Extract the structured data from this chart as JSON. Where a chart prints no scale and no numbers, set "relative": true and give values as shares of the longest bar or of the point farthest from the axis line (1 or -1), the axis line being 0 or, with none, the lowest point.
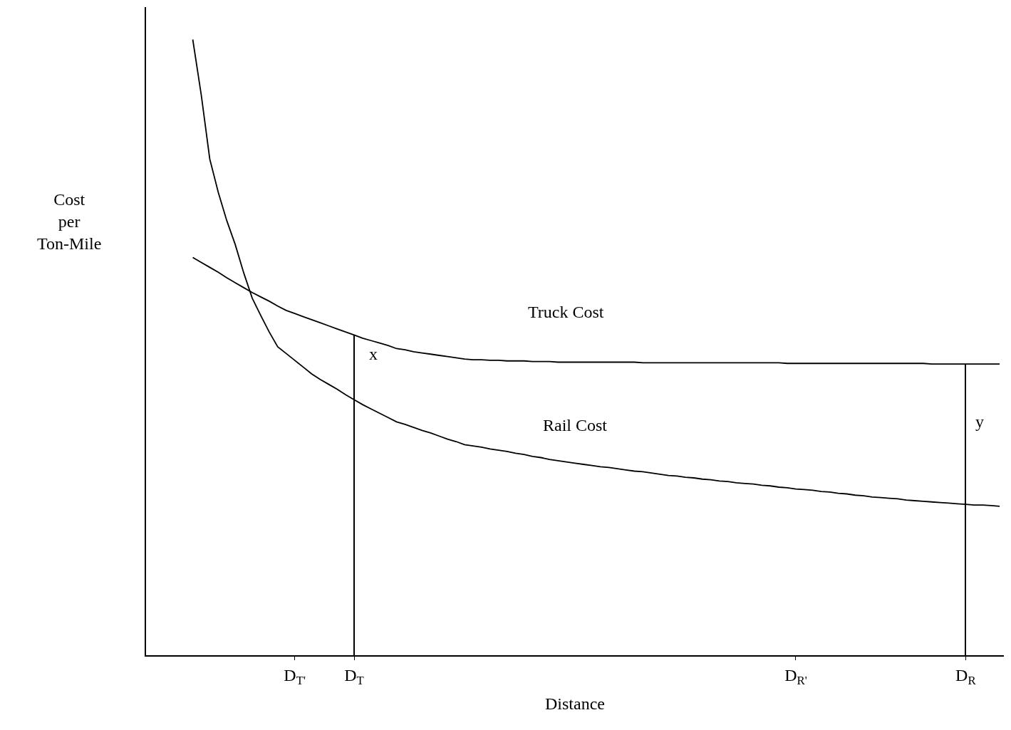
{
  "chart_data": {
    "type": "line",
    "relative": true,
    "xlabel": "Distance",
    "ylabel": "Cost per Ton-Mile",
    "categories": [
      null,
      null,
      null,
      null,
      null,
      null,
      null,
      null,
      null,
      null,
      null,
      null,
      null,
      null,
      null,
      null,
      null,
      "D$_{T'}$",
      null,
      null,
      null,
      null,
      null,
      null,
      "D$_{T}$",
      null,
      null,
      null,
      null,
      null,
      null,
      null,
      null,
      null,
      null,
      null,
      null,
      null,
      null,
      null,
      null,
      null,
      null,
      null,
      null,
      null,
      null,
      null,
      null,
      null,
      null,
      null,
      null,
      null,
      null,
      null,
      null,
      null,
      null,
      null,
      null,
      null,
      null,
      null,
      null,
      null,
      null,
      null,
      null,
      null,
      null,
      null,
      null,
      null,
      null,
      null,
      "D$_{R'}$",
      null,
      null,
      null,
      null,
      null,
      null,
      null,
      null,
      null,
      null,
      null,
      null,
      null,
      null,
      null,
      null,
      null,
      null,
      null,
      "D$_{R}$",
      null,
      null,
      null,
      null
    ],
    "grid": false,
    "marker": "none",
    "line_style": "solid",
    "series": [
      {
        "color": "#000000",
        "values": [
          null,
          null,
          null,
          null,
          null,
          1,
          0.91,
          0.806,
          0.752,
          0.706,
          0.667,
          0.621,
          0.58,
          0.552,
          0.525,
          0.501,
          0.49,
          0.479,
          0.468,
          0.457,
          0.448,
          0.44,
          0.432,
          0.423,
          0.415,
          0.407,
          0.4,
          0.393,
          0.386,
          0.379,
          0.375,
          0.37,
          0.365,
          0.361,
          0.356,
          0.351,
          0.347,
          0.342,
          0.34,
          0.338,
          0.335,
          0.333,
          0.331,
          0.328,
          0.326,
          0.323,
          0.321,
          0.318,
          0.316,
          0.314,
          0.312,
          0.31,
          0.308,
          0.306,
          0.305,
          0.303,
          0.301,
          0.299,
          0.298,
          0.296,
          0.294,
          0.292,
          0.291,
          0.289,
          0.288,
          0.286,
          0.285,
          0.283,
          0.282,
          0.28,
          0.279,
          0.278,
          0.276,
          0.275,
          0.273,
          0.272,
          0.27,
          0.269,
          0.268,
          0.266,
          0.265,
          0.263,
          0.262,
          0.26,
          0.259,
          0.257,
          0.256,
          0.255,
          0.254,
          0.252,
          0.251,
          0.25,
          0.249,
          0.248,
          0.247,
          0.246,
          0.245,
          0.244,
          0.244,
          0.243,
          0.242
        ]
      },
      {
        "color": "#000000",
        "values": [
          null,
          null,
          null,
          null,
          null,
          0.646,
          0.638,
          0.63,
          0.622,
          0.613,
          0.605,
          0.597,
          0.589,
          0.582,
          0.575,
          0.567,
          0.56,
          0.555,
          0.55,
          0.545,
          0.54,
          0.535,
          0.53,
          0.525,
          0.52,
          0.515,
          0.511,
          0.507,
          0.503,
          0.498,
          0.496,
          0.493,
          0.491,
          0.489,
          0.487,
          0.485,
          0.483,
          0.481,
          0.48,
          0.48,
          0.479,
          0.479,
          0.478,
          0.478,
          0.478,
          0.477,
          0.477,
          0.477,
          0.476,
          0.476,
          0.476,
          0.476,
          0.476,
          0.476,
          0.476,
          0.476,
          0.476,
          0.476,
          0.475,
          0.475,
          0.475,
          0.475,
          0.475,
          0.475,
          0.475,
          0.475,
          0.475,
          0.475,
          0.475,
          0.475,
          0.475,
          0.475,
          0.475,
          0.475,
          0.475,
          0.474,
          0.474,
          0.474,
          0.474,
          0.474,
          0.474,
          0.474,
          0.474,
          0.474,
          0.474,
          0.474,
          0.474,
          0.474,
          0.474,
          0.474,
          0.474,
          0.474,
          0.473,
          0.473,
          0.473,
          0.473,
          0.473,
          0.473,
          0.473,
          0.473,
          0.473
        ]
      },
      {
        "type": "bar",
        "color": "#000000",
        "values": [
          null,
          null,
          null,
          null,
          null,
          null,
          null,
          null,
          null,
          null,
          null,
          null,
          null,
          null,
          null,
          null,
          null,
          null,
          null,
          null,
          null,
          null,
          null,
          null,
          0.52,
          null,
          null,
          null,
          null,
          null,
          null,
          null,
          null,
          null,
          null,
          null,
          null,
          null,
          null,
          null,
          null,
          null,
          null,
          null,
          null,
          null,
          null,
          null,
          null,
          null,
          null,
          null,
          null,
          null,
          null,
          null,
          null,
          null,
          null,
          null,
          null,
          null,
          null,
          null,
          null,
          null,
          null,
          null,
          null,
          null,
          null,
          null,
          null,
          null,
          null,
          null,
          null,
          null,
          null,
          null,
          null,
          null,
          null,
          null,
          null,
          null,
          null,
          null,
          null,
          null,
          null,
          null,
          null,
          null,
          null,
          null,
          0.473,
          null,
          null,
          null,
          null
        ]
      }
    ],
    "annotations": [
      "Truck Cost",
      "Rail Cost",
      "x",
      "y"
    ]
  }
}
